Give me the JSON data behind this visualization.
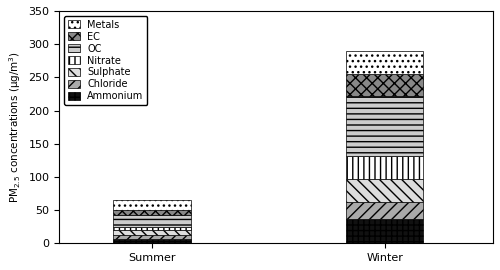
{
  "categories": [
    "Summer",
    "Winter"
  ],
  "components": [
    "Ammonium",
    "Chloride",
    "Sulphate",
    "Nitrate",
    "OC",
    "EC",
    "Metals"
  ],
  "values_summer": [
    7,
    5,
    8,
    5,
    17,
    8,
    15
  ],
  "values_winter": [
    37,
    25,
    35,
    35,
    90,
    33,
    35
  ],
  "ylabel": "PM$_{2.5}$ concentrations (μg/m$^{3}$)",
  "ylim": [
    0,
    350
  ],
  "yticks": [
    0,
    50,
    100,
    150,
    200,
    250,
    300,
    350
  ],
  "bar_width": 0.5,
  "figsize": [
    5.0,
    2.7
  ],
  "dpi": 100,
  "x_positions": [
    0.5,
    2.0
  ]
}
